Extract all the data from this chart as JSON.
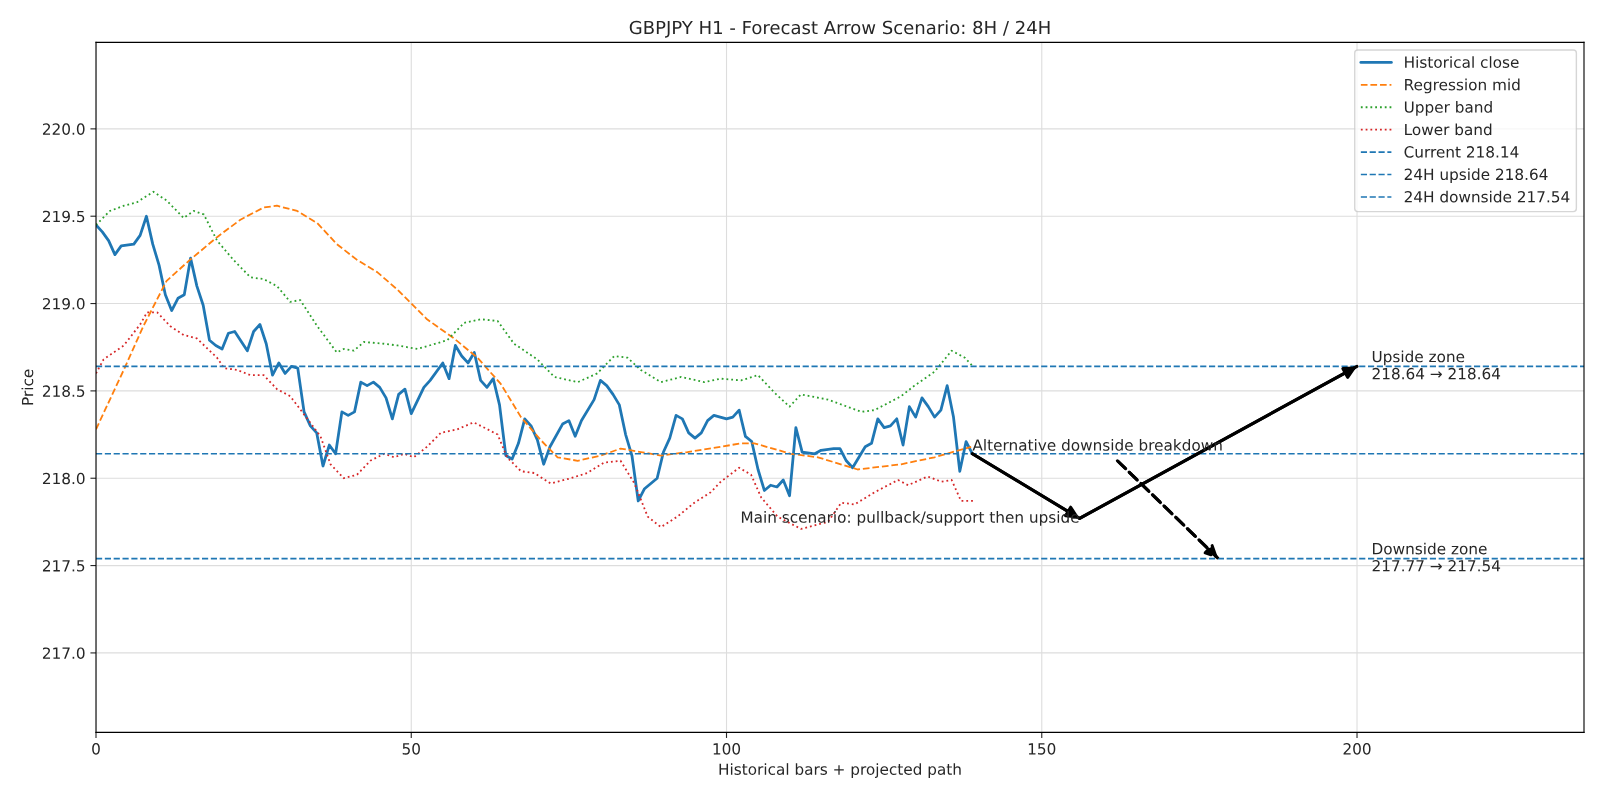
{
  "chart_data": {
    "type": "line",
    "title": "GBPJPY H1 - Forecast Arrow Scenario: 8H / 24H",
    "xlabel": "Historical bars + projected path",
    "ylabel": "Price",
    "xlim": [
      0,
      236
    ],
    "ylim": [
      216.545,
      220.495
    ],
    "xticks": [
      0,
      50,
      100,
      150,
      200
    ],
    "yticks": [
      {
        "value": 217.0,
        "label": "217.0"
      },
      {
        "value": 217.5,
        "label": "217.5"
      },
      {
        "value": 218.0,
        "label": "218.0"
      },
      {
        "value": 218.5,
        "label": "218.5"
      },
      {
        "value": 219.0,
        "label": "219.0"
      },
      {
        "value": 219.5,
        "label": "219.5"
      },
      {
        "value": 220.0,
        "label": "220.0"
      }
    ],
    "grid": true,
    "legend": "top right",
    "series": [
      {
        "name": "Historical close",
        "color": "#1f77b4",
        "line_style": "solid",
        "x": [
          0,
          1,
          2,
          3,
          4,
          6,
          7,
          8,
          9,
          10,
          11,
          12,
          13,
          14,
          15,
          16,
          17,
          18,
          19,
          20,
          21,
          22,
          24,
          25,
          26,
          27,
          28,
          29,
          30,
          31,
          32,
          33,
          34,
          35,
          36,
          37,
          38,
          39,
          40,
          41,
          42,
          43,
          44,
          45,
          46,
          47,
          48,
          49,
          50,
          52,
          53,
          55,
          56,
          57,
          58,
          59,
          60,
          61,
          62,
          63,
          64,
          65,
          66,
          67,
          68,
          69,
          70,
          71,
          72,
          74,
          75,
          76,
          77,
          79,
          80,
          81,
          82,
          83,
          84,
          85,
          86,
          87,
          88,
          89,
          90,
          91,
          92,
          93,
          94,
          95,
          96,
          97,
          98,
          99,
          100,
          101,
          102,
          103,
          104,
          105,
          106,
          107,
          108,
          109,
          110,
          111,
          112,
          114,
          115,
          117,
          118,
          119,
          120,
          121,
          122,
          123,
          124,
          125,
          126,
          127,
          128,
          129,
          130,
          131,
          132,
          133,
          134,
          135,
          136,
          137,
          138,
          139
        ],
        "values": [
          219.45,
          219.41,
          219.36,
          219.28,
          219.33,
          219.34,
          219.39,
          219.5,
          219.34,
          219.22,
          219.05,
          218.96,
          219.03,
          219.05,
          219.26,
          219.1,
          218.99,
          218.79,
          218.76,
          218.74,
          218.83,
          218.84,
          218.73,
          218.84,
          218.88,
          218.77,
          218.59,
          218.66,
          218.6,
          218.64,
          218.63,
          218.38,
          218.3,
          218.26,
          218.07,
          218.19,
          218.14,
          218.38,
          218.36,
          218.38,
          218.55,
          218.53,
          218.55,
          218.52,
          218.46,
          218.34,
          218.48,
          218.51,
          218.37,
          218.52,
          218.56,
          218.66,
          218.57,
          218.76,
          218.7,
          218.66,
          218.72,
          218.56,
          218.52,
          218.57,
          218.42,
          218.13,
          218.11,
          218.2,
          218.34,
          218.3,
          218.22,
          218.08,
          218.18,
          218.31,
          218.33,
          218.24,
          218.33,
          218.45,
          218.56,
          218.53,
          218.48,
          218.42,
          218.25,
          218.13,
          217.87,
          217.94,
          217.97,
          218.0,
          218.15,
          218.23,
          218.36,
          218.34,
          218.26,
          218.23,
          218.26,
          218.33,
          218.36,
          218.35,
          218.34,
          218.35,
          218.39,
          218.24,
          218.21,
          218.05,
          217.93,
          217.96,
          217.95,
          217.99,
          217.9,
          218.29,
          218.15,
          218.14,
          218.16,
          218.17,
          218.17,
          218.1,
          218.06,
          218.12,
          218.18,
          218.2,
          218.34,
          218.29,
          218.3,
          218.34,
          218.19,
          218.41,
          218.35,
          218.46,
          218.41,
          218.35,
          218.39,
          218.53,
          218.35,
          218.04,
          218.21,
          218.14
        ]
      },
      {
        "name": "Regression mid",
        "color": "#ff7f0e",
        "line_style": "dashed",
        "x": [
          0,
          4.4,
          7.5,
          11.2,
          14.9,
          19.2,
          22.9,
          26.6,
          28.7,
          31.9,
          35.1,
          38.2,
          41.4,
          44.6,
          47.8,
          52.5,
          56.8,
          60.5,
          64.2,
          67.4,
          70.5,
          73.2,
          76.4,
          80.1,
          83.2,
          86.4,
          89.6,
          93.8,
          99.1,
          102.3,
          104.4,
          110.2,
          114.5,
          120.8,
          127.7,
          133,
          138.8
        ],
        "values": [
          218.28,
          218.62,
          218.87,
          219.13,
          219.25,
          219.38,
          219.48,
          219.55,
          219.56,
          219.53,
          219.46,
          219.34,
          219.25,
          219.18,
          219.08,
          218.91,
          218.8,
          218.69,
          218.54,
          218.35,
          218.22,
          218.12,
          218.1,
          218.13,
          218.17,
          218.15,
          218.13,
          218.15,
          218.18,
          218.2,
          218.2,
          218.14,
          218.12,
          218.05,
          218.08,
          218.12,
          218.18
        ]
      },
      {
        "name": "Upper band",
        "color": "#2ca02c",
        "line_style": "dotted",
        "x": [
          0,
          2.2,
          4.4,
          6.5,
          9.1,
          11.2,
          13.9,
          15.5,
          17.1,
          19.2,
          21.8,
          24.5,
          26.6,
          28.7,
          30.8,
          32.4,
          35.1,
          38.2,
          39.3,
          40.9,
          42.5,
          45.7,
          47.8,
          51,
          55.7,
          58.4,
          61,
          63.7,
          66.3,
          70,
          72.7,
          76.4,
          79.5,
          82.2,
          84.3,
          86.4,
          89.6,
          92.8,
          96.5,
          99.1,
          102.3,
          105,
          107.6,
          110,
          111.8,
          116.1,
          121.4,
          123.5,
          127.7,
          129.8,
          133,
          135.7,
          137.8,
          139.1
        ],
        "values": [
          219.45,
          219.53,
          219.56,
          219.58,
          219.64,
          219.59,
          219.49,
          219.53,
          219.51,
          219.36,
          219.25,
          219.15,
          219.14,
          219.1,
          219.01,
          219.02,
          218.87,
          218.72,
          218.74,
          218.73,
          218.78,
          218.77,
          218.76,
          218.74,
          218.79,
          218.89,
          218.91,
          218.9,
          218.77,
          218.68,
          218.58,
          218.55,
          218.6,
          218.7,
          218.69,
          218.62,
          218.55,
          218.58,
          218.55,
          218.57,
          218.56,
          218.59,
          218.49,
          218.41,
          218.48,
          218.45,
          218.38,
          218.39,
          218.47,
          218.53,
          218.61,
          218.73,
          218.69,
          218.64
        ]
      },
      {
        "name": "Lower band",
        "color": "#d62728",
        "line_style": "dotted",
        "x": [
          0,
          1.2,
          4.4,
          7,
          8.1,
          9.7,
          11.8,
          13.9,
          16,
          19.2,
          20.3,
          22.4,
          24.5,
          26.6,
          28.7,
          30.8,
          32.9,
          35.6,
          37.2,
          39.3,
          41.4,
          43.5,
          45.7,
          47.3,
          48.9,
          50.4,
          52.5,
          54.7,
          57.3,
          59.9,
          62.1,
          63.7,
          65.2,
          67.4,
          69.5,
          72.1,
          75.3,
          77.9,
          80.6,
          83.2,
          85.4,
          87.5,
          89.6,
          92.2,
          94.9,
          97.5,
          99.1,
          102,
          103.9,
          105.5,
          108.1,
          111.8,
          116.1,
          118.2,
          120.3,
          123.5,
          127.2,
          128.8,
          131.9,
          134.1,
          135.7,
          137.2,
          139.1
        ],
        "values": [
          218.6,
          218.68,
          218.76,
          218.88,
          218.95,
          218.95,
          218.87,
          218.82,
          218.8,
          218.69,
          218.63,
          218.62,
          218.59,
          218.59,
          218.51,
          218.47,
          218.37,
          218.24,
          218.08,
          218.0,
          218.02,
          218.1,
          218.14,
          218.12,
          218.14,
          218.12,
          218.18,
          218.26,
          218.28,
          218.32,
          218.28,
          218.25,
          218.12,
          218.04,
          218.03,
          217.97,
          218.0,
          218.03,
          218.09,
          218.1,
          217.97,
          217.78,
          217.72,
          217.78,
          217.86,
          217.92,
          217.98,
          218.06,
          218.02,
          217.89,
          217.78,
          217.71,
          217.75,
          217.86,
          217.85,
          217.92,
          217.99,
          217.96,
          218.01,
          217.98,
          217.99,
          217.87,
          217.87
        ]
      },
      {
        "color": "#000000",
        "line_style": "solid",
        "x": [
          139,
          156,
          200
        ],
        "values": [
          218.14,
          217.77,
          218.64
        ]
      },
      {
        "color": "#000000",
        "line_style": "dashed",
        "x": [
          162,
          178
        ],
        "values": [
          218.1,
          217.54
        ]
      }
    ],
    "ref_lines": [
      {
        "axis": "y",
        "value": 218.14,
        "label": "Current 218.14",
        "color": "#1f77b4",
        "line_style": "dashed"
      },
      {
        "axis": "y",
        "value": 218.64,
        "label": "24H upside 218.64",
        "color": "#1f77b4",
        "line_style": "dashed"
      },
      {
        "axis": "y",
        "value": 217.54,
        "label": "24H downside 217.54",
        "color": "#1f77b4",
        "line_style": "dashed"
      }
    ],
    "annotations": [
      {
        "text": "Main scenario: pullback/support then upside",
        "x": 156,
        "y": 217.77
      },
      {
        "text": "Alternative downside breakdown",
        "x": 139,
        "y": 218.14
      },
      {
        "text": "Upside zone\n218.64 → 218.64",
        "x": 202.3,
        "y": 218.64
      },
      {
        "text": "Downside zone\n217.77 → 217.54",
        "x": 202.3,
        "y": 217.54
      }
    ]
  }
}
